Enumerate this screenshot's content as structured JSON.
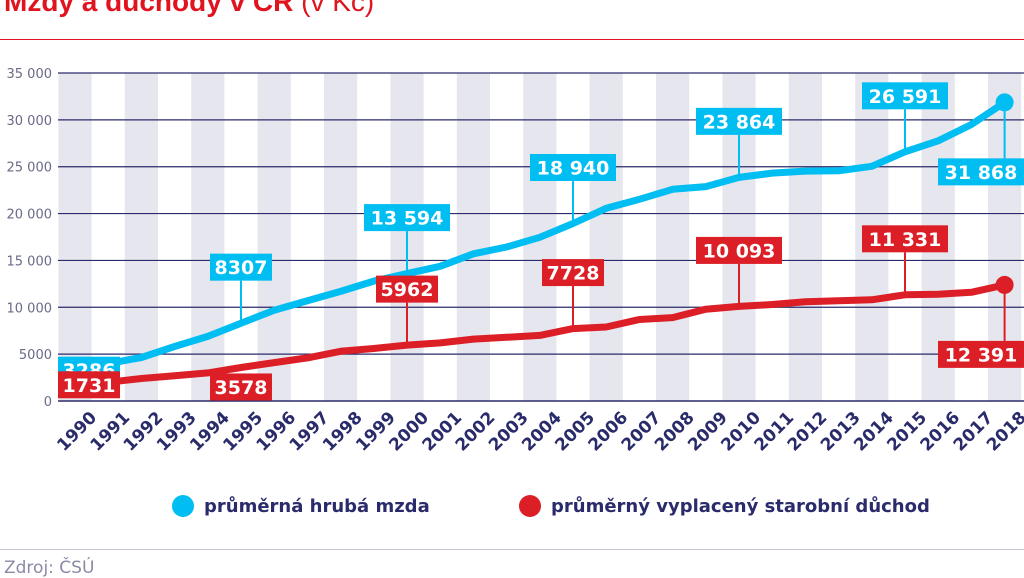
{
  "title": {
    "main": "Mzdy a důchody v ČR",
    "unit": "(v Kč)"
  },
  "source": "Zdroj: ČSÚ",
  "colors": {
    "wage": "#00bdf2",
    "pension": "#dc1e26",
    "axis_text": "#2a2b6a",
    "grid": "#2a2b6a",
    "band": "#e6e6ee"
  },
  "chart_data": {
    "type": "line",
    "x": [
      1990,
      1991,
      1992,
      1993,
      1994,
      1995,
      1996,
      1997,
      1998,
      1999,
      2000,
      2001,
      2002,
      2003,
      2004,
      2005,
      2006,
      2007,
      2008,
      2009,
      2010,
      2011,
      2012,
      2013,
      2014,
      2015,
      2016,
      2017,
      2018
    ],
    "ylim": [
      0,
      35000
    ],
    "yticks": [
      0,
      5000,
      10000,
      15000,
      20000,
      25000,
      30000,
      35000
    ],
    "ytick_labels": [
      "0",
      "5000",
      "10 000",
      "15 000",
      "20 000",
      "25 000",
      "30 000",
      "35 000"
    ],
    "xlabel": "",
    "ylabel": "",
    "series": [
      {
        "name": "průměrná hrubá mzda",
        "color": "#00bdf2",
        "values": [
          3286,
          4000,
          4644,
          5817,
          6896,
          8307,
          9676,
          10691,
          11693,
          12797,
          13594,
          14378,
          15711,
          16430,
          17466,
          18940,
          20560,
          21527,
          22592,
          22877,
          23864,
          24319,
          24536,
          24563,
          25039,
          26591,
          27764,
          29504,
          31868
        ],
        "labels": [
          {
            "year": 1990,
            "text": "3286",
            "place": "below"
          },
          {
            "year": 1995,
            "text": "8307",
            "place": "above"
          },
          {
            "year": 2000,
            "text": "13 594",
            "place": "above"
          },
          {
            "year": 2005,
            "text": "18 940",
            "place": "above"
          },
          {
            "year": 2010,
            "text": "23 864",
            "place": "above"
          },
          {
            "year": 2015,
            "text": "26 591",
            "place": "above"
          },
          {
            "year": 2018,
            "text": "31 868",
            "place": "below"
          }
        ]
      },
      {
        "name": "průměrný vyplacený starobní důchod",
        "color": "#dc1e26",
        "values": [
          1731,
          2000,
          2400,
          2700,
          3000,
          3578,
          4100,
          4600,
          5300,
          5600,
          5962,
          6200,
          6600,
          6800,
          7000,
          7728,
          7900,
          8700,
          8900,
          9800,
          10093,
          10300,
          10600,
          10700,
          10800,
          11331,
          11400,
          11600,
          12391
        ],
        "labels": [
          {
            "year": 1990,
            "text": "1731",
            "place": "below"
          },
          {
            "year": 1995,
            "text": "3578",
            "place": "below"
          },
          {
            "year": 2000,
            "text": "5962",
            "place": "above"
          },
          {
            "year": 2005,
            "text": "7728",
            "place": "above"
          },
          {
            "year": 2010,
            "text": "10 093",
            "place": "above"
          },
          {
            "year": 2015,
            "text": "11 331",
            "place": "above"
          },
          {
            "year": 2018,
            "text": "12 391",
            "place": "below"
          }
        ]
      }
    ]
  }
}
